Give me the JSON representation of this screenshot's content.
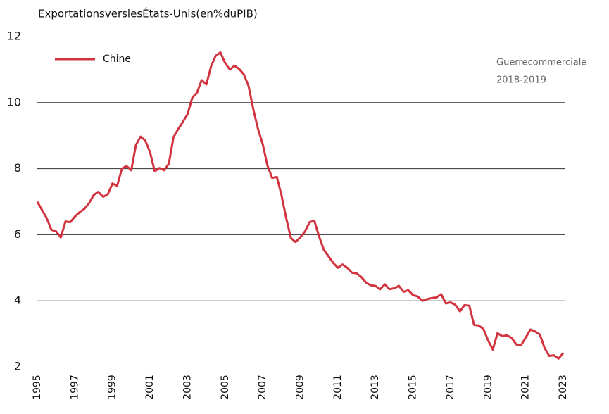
{
  "chart_data": {
    "type": "line",
    "title": "ExportationsverslesÉtats-Unis(en%duPIB)",
    "annotation": [
      "Guerrecommerciale",
      "2018-2019"
    ],
    "x": [
      1995,
      1995.25,
      1995.5,
      1995.75,
      1996,
      1996.25,
      1996.5,
      1996.75,
      1997,
      1997.25,
      1997.5,
      1997.75,
      1998,
      1998.25,
      1998.5,
      1998.75,
      1999,
      1999.25,
      1999.5,
      1999.75,
      2000,
      2000.25,
      2000.5,
      2000.75,
      2001,
      2001.25,
      2001.5,
      2001.75,
      2002,
      2002.25,
      2002.5,
      2002.75,
      2003,
      2003.25,
      2003.5,
      2003.75,
      2004,
      2004.25,
      2004.5,
      2004.75,
      2005,
      2005.25,
      2005.5,
      2005.75,
      2006,
      2006.25,
      2006.5,
      2006.75,
      2007,
      2007.25,
      2007.5,
      2007.75,
      2008,
      2008.25,
      2008.5,
      2008.75,
      2009,
      2009.25,
      2009.5,
      2009.75,
      2010,
      2010.25,
      2010.5,
      2010.75,
      2011,
      2011.25,
      2011.5,
      2011.75,
      2012,
      2012.25,
      2012.5,
      2012.75,
      2013,
      2013.25,
      2013.5,
      2013.75,
      2014,
      2014.25,
      2014.5,
      2014.75,
      2015,
      2015.25,
      2015.5,
      2015.75,
      2016,
      2016.25,
      2016.5,
      2016.75,
      2017,
      2017.25,
      2017.5,
      2017.75,
      2018,
      2018.25,
      2018.5,
      2018.75,
      2019,
      2019.25,
      2019.5,
      2019.75,
      2020,
      2020.25,
      2020.5,
      2020.75,
      2021,
      2021.25,
      2021.5,
      2021.75,
      2022,
      2022.25,
      2022.5,
      2022.75,
      2023
    ],
    "series": [
      {
        "name": "Chine",
        "color": "#d2343f",
        "values": [
          7.0,
          6.75,
          6.5,
          6.15,
          6.1,
          5.92,
          6.4,
          6.38,
          6.55,
          6.68,
          6.78,
          6.95,
          7.2,
          7.3,
          7.15,
          7.22,
          7.55,
          7.48,
          8.0,
          8.08,
          7.95,
          8.72,
          8.97,
          8.85,
          8.5,
          7.92,
          8.02,
          7.95,
          8.15,
          8.95,
          9.2,
          9.42,
          9.65,
          10.15,
          10.3,
          10.68,
          10.55,
          11.1,
          11.42,
          11.52,
          11.2,
          11.0,
          11.12,
          11.02,
          10.85,
          10.5,
          9.8,
          9.2,
          8.75,
          8.1,
          7.72,
          7.75,
          7.2,
          6.5,
          5.9,
          5.78,
          5.92,
          6.1,
          6.38,
          6.42,
          5.95,
          5.55,
          5.35,
          5.15,
          5.0,
          5.1,
          5.0,
          4.85,
          4.83,
          4.72,
          4.55,
          4.47,
          4.45,
          4.35,
          4.5,
          4.35,
          4.38,
          4.45,
          4.27,
          4.32,
          4.17,
          4.13,
          4.0,
          4.05,
          4.08,
          4.1,
          4.2,
          3.92,
          3.95,
          3.88,
          3.68,
          3.87,
          3.85,
          3.27,
          3.25,
          3.15,
          2.8,
          2.52,
          3.02,
          2.93,
          2.95,
          2.88,
          2.68,
          2.65,
          2.88,
          3.13,
          3.07,
          2.98,
          2.58,
          2.33,
          2.35,
          2.25,
          2.42
        ]
      }
    ],
    "xlim": [
      1995,
      2023
    ],
    "xticks": [
      1995,
      1997,
      1999,
      2001,
      2003,
      2005,
      2007,
      2009,
      2011,
      2013,
      2015,
      2017,
      2019,
      2021,
      2023
    ],
    "ylim": [
      2,
      12
    ],
    "yticks": [
      2,
      4,
      6,
      8,
      10,
      12
    ],
    "grid": true,
    "legend": "upper left"
  }
}
